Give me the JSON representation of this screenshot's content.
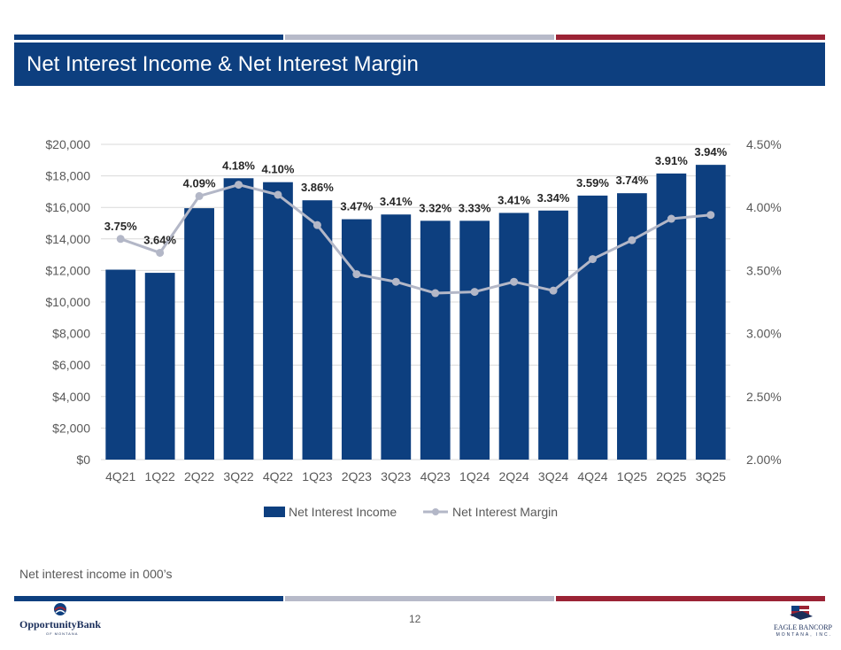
{
  "slide": {
    "title": "Net Interest Income & Net Interest Margin",
    "footnote": "Net interest income in 000’s",
    "page_number": "12"
  },
  "logos": {
    "left": {
      "brand": "OpportunityBank",
      "sub": "OF MONTANA"
    },
    "right": {
      "brand": "EAGLE BANCORP",
      "sub": "MONTANA, INC."
    }
  },
  "colors": {
    "navy": "#0d3f7f",
    "stripe_gray": "#b7bac9",
    "stripe_red": "#9b2335",
    "line": "#b3b7c7",
    "grid": "#d9d9d9",
    "axis_text": "#595959"
  },
  "chart_data": {
    "type": "bar",
    "title": "",
    "categories": [
      "4Q21",
      "1Q22",
      "2Q22",
      "3Q22",
      "4Q22",
      "1Q23",
      "2Q23",
      "3Q23",
      "4Q23",
      "1Q24",
      "2Q24",
      "3Q24",
      "4Q24",
      "1Q25",
      "2Q25",
      "3Q25"
    ],
    "series": [
      {
        "name": "Net Interest Income",
        "type": "bar",
        "axis": "left",
        "values": [
          12050,
          11850,
          15950,
          17850,
          17600,
          16450,
          15250,
          15550,
          15150,
          15150,
          15650,
          15800,
          16750,
          16900,
          18150,
          18700
        ]
      },
      {
        "name": "Net Interest Margin",
        "type": "line",
        "axis": "right",
        "values": [
          3.75,
          3.64,
          4.09,
          4.18,
          4.1,
          3.86,
          3.47,
          3.41,
          3.32,
          3.33,
          3.41,
          3.34,
          3.59,
          3.74,
          3.91,
          3.94
        ],
        "labels": [
          "3.75%",
          "3.64%",
          "4.09%",
          "4.18%",
          "4.10%",
          "3.86%",
          "3.47%",
          "3.41%",
          "3.32%",
          "3.33%",
          "3.41%",
          "3.34%",
          "3.59%",
          "3.74%",
          "3.91%",
          "3.94%"
        ]
      }
    ],
    "y_left": {
      "min": 0,
      "max": 20000,
      "ticks": [
        "$0",
        "$2,000",
        "$4,000",
        "$6,000",
        "$8,000",
        "$10,000",
        "$12,000",
        "$14,000",
        "$16,000",
        "$18,000",
        "$20,000"
      ]
    },
    "y_right": {
      "min": 2.0,
      "max": 4.5,
      "ticks": [
        "2.00%",
        "2.50%",
        "3.00%",
        "3.50%",
        "4.00%",
        "4.50%"
      ]
    },
    "legend": [
      "Net Interest Income",
      "Net Interest Margin"
    ],
    "legend_position": "bottom",
    "grid": true
  }
}
